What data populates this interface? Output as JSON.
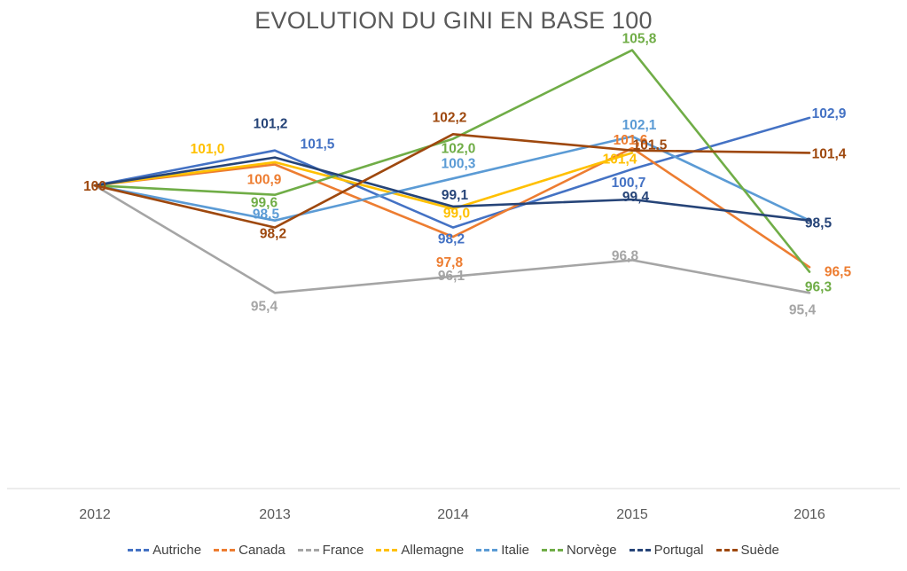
{
  "chart_data": {
    "type": "line",
    "title": "EVOLUTION DU GINI EN BASE 100",
    "xlabel": "",
    "ylabel": "",
    "categories": [
      "2012",
      "2013",
      "2014",
      "2015",
      "2016"
    ],
    "ylim": [
      88,
      107
    ],
    "grid": false,
    "legend_position": "bottom",
    "series": [
      {
        "name": "Autriche",
        "color": "#4472C4",
        "values": [
          100,
          101.5,
          98.2,
          100.7,
          102.9
        ],
        "labels": [
          "",
          "101,5",
          "98,2",
          "100,7",
          "102,9"
        ]
      },
      {
        "name": "Canada",
        "color": "#ED7D31",
        "values": [
          100,
          100.9,
          97.8,
          101.6,
          96.5
        ],
        "labels": [
          "",
          "100,9",
          "97,8",
          "101,6",
          "96,5"
        ]
      },
      {
        "name": "France",
        "color": "#A5A5A5",
        "values": [
          100,
          95.4,
          96.1,
          96.8,
          95.4
        ],
        "labels": [
          "",
          "95,4",
          "96,1",
          "96,8",
          "95,4"
        ]
      },
      {
        "name": "Allemagne",
        "color": "#FFC000",
        "values": [
          100,
          101.0,
          99.0,
          101.4,
          null
        ],
        "labels": [
          "",
          "101,0",
          "99,0",
          "101,4",
          ""
        ]
      },
      {
        "name": "Italie",
        "color": "#5B9BD5",
        "values": [
          100,
          98.5,
          100.3,
          102.1,
          98.5
        ],
        "labels": [
          "",
          "98,5",
          "100,3",
          "102,1",
          ""
        ]
      },
      {
        "name": "Norvège",
        "color": "#70AD47",
        "values": [
          100,
          99.6,
          102.0,
          105.8,
          96.3
        ],
        "labels": [
          "",
          "99,6",
          "102,0",
          "105,8",
          "96,3"
        ]
      },
      {
        "name": "Portugal",
        "color": "#264478",
        "values": [
          100,
          101.2,
          99.1,
          99.4,
          98.5
        ],
        "labels": [
          "",
          "101,2",
          "99,1",
          "99,4",
          "98,5"
        ]
      },
      {
        "name": "Suède",
        "color": "#9E480E",
        "values": [
          100,
          98.2,
          102.2,
          101.5,
          101.4
        ],
        "labels": [
          "100",
          "98,2",
          "102,2",
          "101,5",
          "101,4"
        ]
      }
    ]
  }
}
